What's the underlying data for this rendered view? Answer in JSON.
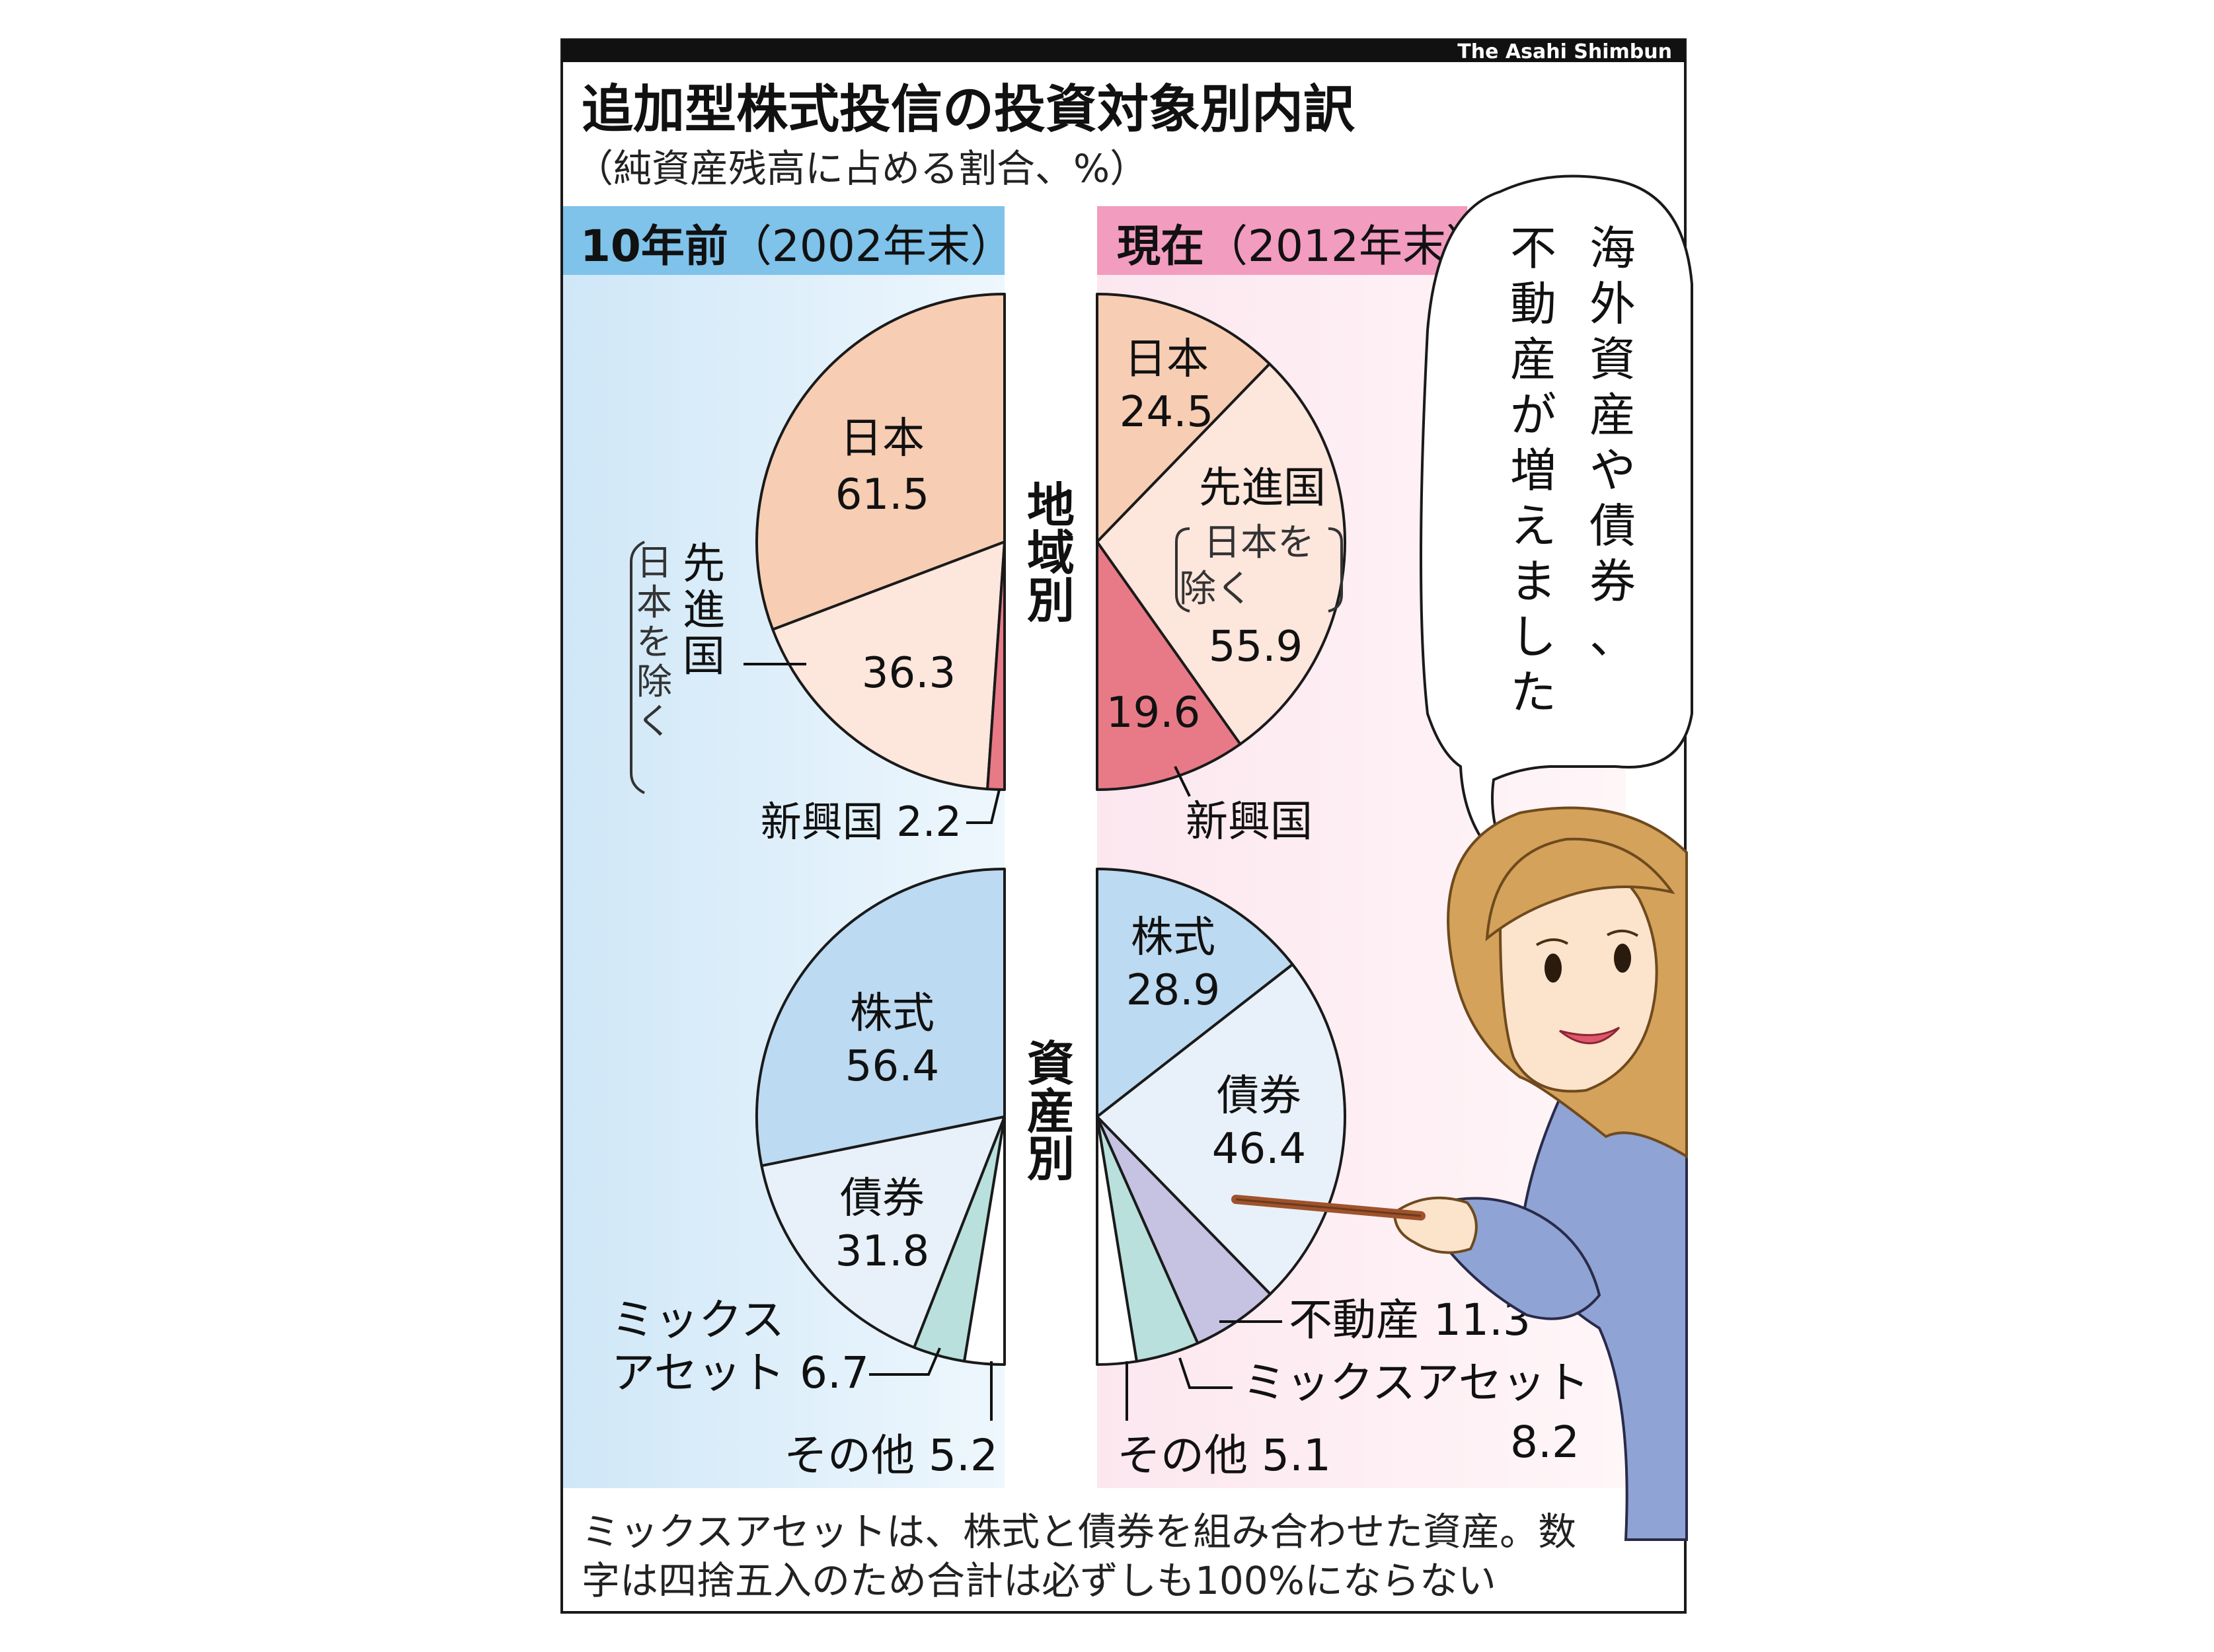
{
  "credit": "The Asahi Shimbun",
  "title": "追加型株式投信の投資対象別内訳",
  "subtitle": "（純資産残高に占める割合、%）",
  "left_header": {
    "bold": "10年前",
    "rest": "（2002年末）"
  },
  "right_header": {
    "bold": "現在",
    "rest": "（2012年末）"
  },
  "row_labels": {
    "region": [
      "地",
      "域",
      "別"
    ],
    "asset": [
      "資",
      "産",
      "別"
    ]
  },
  "speech_bubble": {
    "col1": [
      "海",
      "外",
      "資",
      "産",
      "や",
      "債",
      "券",
      "、"
    ],
    "col2": [
      "不",
      "動",
      "産",
      "が",
      "増",
      "え",
      "ま",
      "し",
      "た"
    ]
  },
  "footnote": {
    "line1": "ミックスアセットは、株式と債券を組み合わせた資産。数",
    "line2": "字は四捨五入のため合計は必ずしも100%にならない"
  },
  "colors": {
    "japan": "#f7cdb3",
    "developed": "#fde6dc",
    "emerging": "#e77a86",
    "stocks": "#bcdaf1",
    "bonds": "#e8f1fa",
    "mixed": "#b9e0dc",
    "realestate": "#c6c2e2",
    "other": "#ffffff",
    "left_bg": "#d6ebf8",
    "right_bg": "#fbe0ea",
    "left_header_bg": "#7fc2ea",
    "right_header_bg": "#f29cbf"
  },
  "chart_data": [
    {
      "type": "pie",
      "title": "10年前（2002年末）地域別",
      "slices": [
        {
          "name": "日本",
          "value": 61.5,
          "text": "61.5"
        },
        {
          "name": "先進国（日本を除く）",
          "value": 36.3,
          "text": "36.3",
          "label_lines": [
            "先",
            "進",
            "国"
          ],
          "note_lines": [
            "日",
            "本",
            "を",
            "除",
            "く"
          ]
        },
        {
          "name": "新興国",
          "value": 2.2,
          "text": "新興国 2.2"
        }
      ]
    },
    {
      "type": "pie",
      "title": "現在（2012年末）地域別",
      "slices": [
        {
          "name": "日本",
          "value": 24.5,
          "text": "24.5"
        },
        {
          "name": "先進国（日本を除く）",
          "value": 55.9,
          "text": "55.9",
          "label_lines": [
            "先進国"
          ],
          "note_lines": [
            "日本を",
            "除く"
          ]
        },
        {
          "name": "新興国",
          "value": 19.6,
          "text": "19.6"
        }
      ]
    },
    {
      "type": "pie",
      "title": "10年前（2002年末）資産別",
      "slices": [
        {
          "name": "株式",
          "value": 56.4,
          "text": "56.4"
        },
        {
          "name": "債券",
          "value": 31.8,
          "text": "31.8"
        },
        {
          "name": "ミックスアセット",
          "value": 6.7,
          "text": "6.7",
          "label_lines": [
            "ミックス",
            "アセット"
          ]
        },
        {
          "name": "その他",
          "value": 5.2,
          "text": "その他 5.2"
        }
      ]
    },
    {
      "type": "pie",
      "title": "現在（2012年末）資産別",
      "slices": [
        {
          "name": "株式",
          "value": 28.9,
          "text": "28.9"
        },
        {
          "name": "債券",
          "value": 46.4,
          "text": "46.4"
        },
        {
          "name": "不動産",
          "value": 11.3,
          "text": "不動産 11.3"
        },
        {
          "name": "ミックスアセット",
          "value": 8.2,
          "text": "8.2"
        },
        {
          "name": "その他",
          "value": 5.1,
          "text": "その他 5.1"
        }
      ]
    }
  ]
}
